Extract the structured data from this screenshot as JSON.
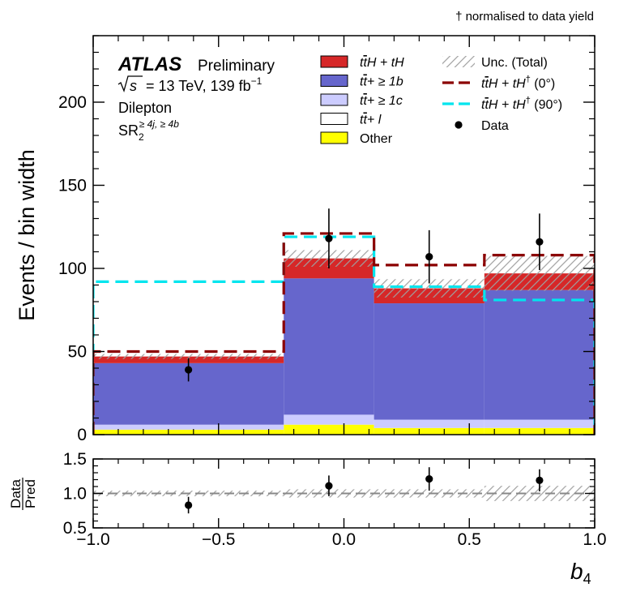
{
  "chart_data": {
    "type": "histogram",
    "note": "† normalised to data yield",
    "atlas": {
      "label": "ATLAS",
      "status": "Preliminary",
      "energy": "= 13 TeV, 139 fb",
      "sqrt_s": "s",
      "lumi_exp": "−1",
      "channel": "Dilepton",
      "region": "SR",
      "region_sub": "2",
      "region_sup": "≥ 4j, ≥ 4b"
    },
    "xlabel": "b",
    "xlabel_sub": "4",
    "ylabel": "Events / bin width",
    "ratio_ylabel_top": "Data",
    "ratio_ylabel_bottom": "Pred",
    "xlim": [
      -1.0,
      1.0
    ],
    "ylim": [
      0,
      240
    ],
    "ratio_ylim": [
      0.5,
      1.5
    ],
    "bin_edges": [
      -1.0,
      -0.24,
      0.12,
      0.56,
      1.0
    ],
    "main_yticks": [
      0,
      50,
      100,
      150,
      200
    ],
    "ratio_yticks": [
      0.5,
      1.0,
      1.5
    ],
    "xticks": [
      -1.0,
      -0.5,
      0.0,
      0.5,
      1.0
    ],
    "main_ytick_labels": [
      "0",
      "50",
      "100",
      "150",
      "200"
    ],
    "ratio_ytick_labels": [
      "0.5",
      "1.0",
      "1.5"
    ],
    "xtick_labels": [
      "−1.0",
      "−0.5",
      "0.0",
      "0.5",
      "1.0"
    ],
    "stack": [
      {
        "name": "Other",
        "color": "#ffff00",
        "values": [
          3,
          6,
          4,
          4
        ]
      },
      {
        "name": "tt+≥1c",
        "color": "#ccccff",
        "values": [
          3,
          6,
          5,
          5
        ]
      },
      {
        "name": "tt+≥1b",
        "color": "#6666cc",
        "values": [
          37,
          82,
          70,
          78
        ]
      },
      {
        "name": "ttH+tH",
        "color": "#d62728",
        "values": [
          4,
          12,
          9,
          10
        ]
      },
      {
        "name": "tt+l",
        "color": "#ffffff",
        "values": [
          0,
          0,
          0,
          0
        ]
      }
    ],
    "unc_total": [
      1.5,
      5.0,
      5.5,
      10.5
    ],
    "signal_0": {
      "name": "ttH+tH† (0°)",
      "color": "#8b0000",
      "values": [
        50,
        121,
        102,
        108
      ]
    },
    "signal_90": {
      "name": "ttH+tH† (90°)",
      "color": "#00e5ee",
      "values": [
        92,
        119,
        89,
        81
      ]
    },
    "data": {
      "x": [
        -0.62,
        -0.06,
        0.34,
        0.78
      ],
      "y": [
        39,
        118,
        107,
        116
      ],
      "err": [
        7,
        18,
        16,
        17
      ]
    },
    "ratio": {
      "y": [
        0.83,
        1.11,
        1.21,
        1.19
      ],
      "err": [
        0.12,
        0.15,
        0.17,
        0.16
      ],
      "band": [
        0.04,
        0.06,
        0.06,
        0.11
      ]
    },
    "legend": {
      "col1": [
        {
          "key": "tth",
          "l1": "t",
          "l2": "t",
          "l3": "H + tH"
        },
        {
          "key": "ttb",
          "l1": "t",
          "l2": "t",
          "l3": "+ ≥ 1b"
        },
        {
          "key": "ttc",
          "l1": "t",
          "l2": "t",
          "l3": "+ ≥ 1c"
        },
        {
          "key": "ttl",
          "l1": "t",
          "l2": "t",
          "l3": "+ l"
        },
        {
          "key": "other",
          "text": "Other"
        }
      ],
      "col2": [
        {
          "key": "unc",
          "text": "Unc. (Total)"
        },
        {
          "key": "sig0",
          "l1": "t",
          "l2": "t",
          "l3": "H + tH",
          "l4": "†",
          "l5": " (0°)"
        },
        {
          "key": "sig90",
          "l1": "t",
          "l2": "t",
          "l3": "H + tH",
          "l4": "†",
          "l5": " (90°)"
        },
        {
          "key": "data",
          "text": "Data"
        }
      ]
    }
  }
}
